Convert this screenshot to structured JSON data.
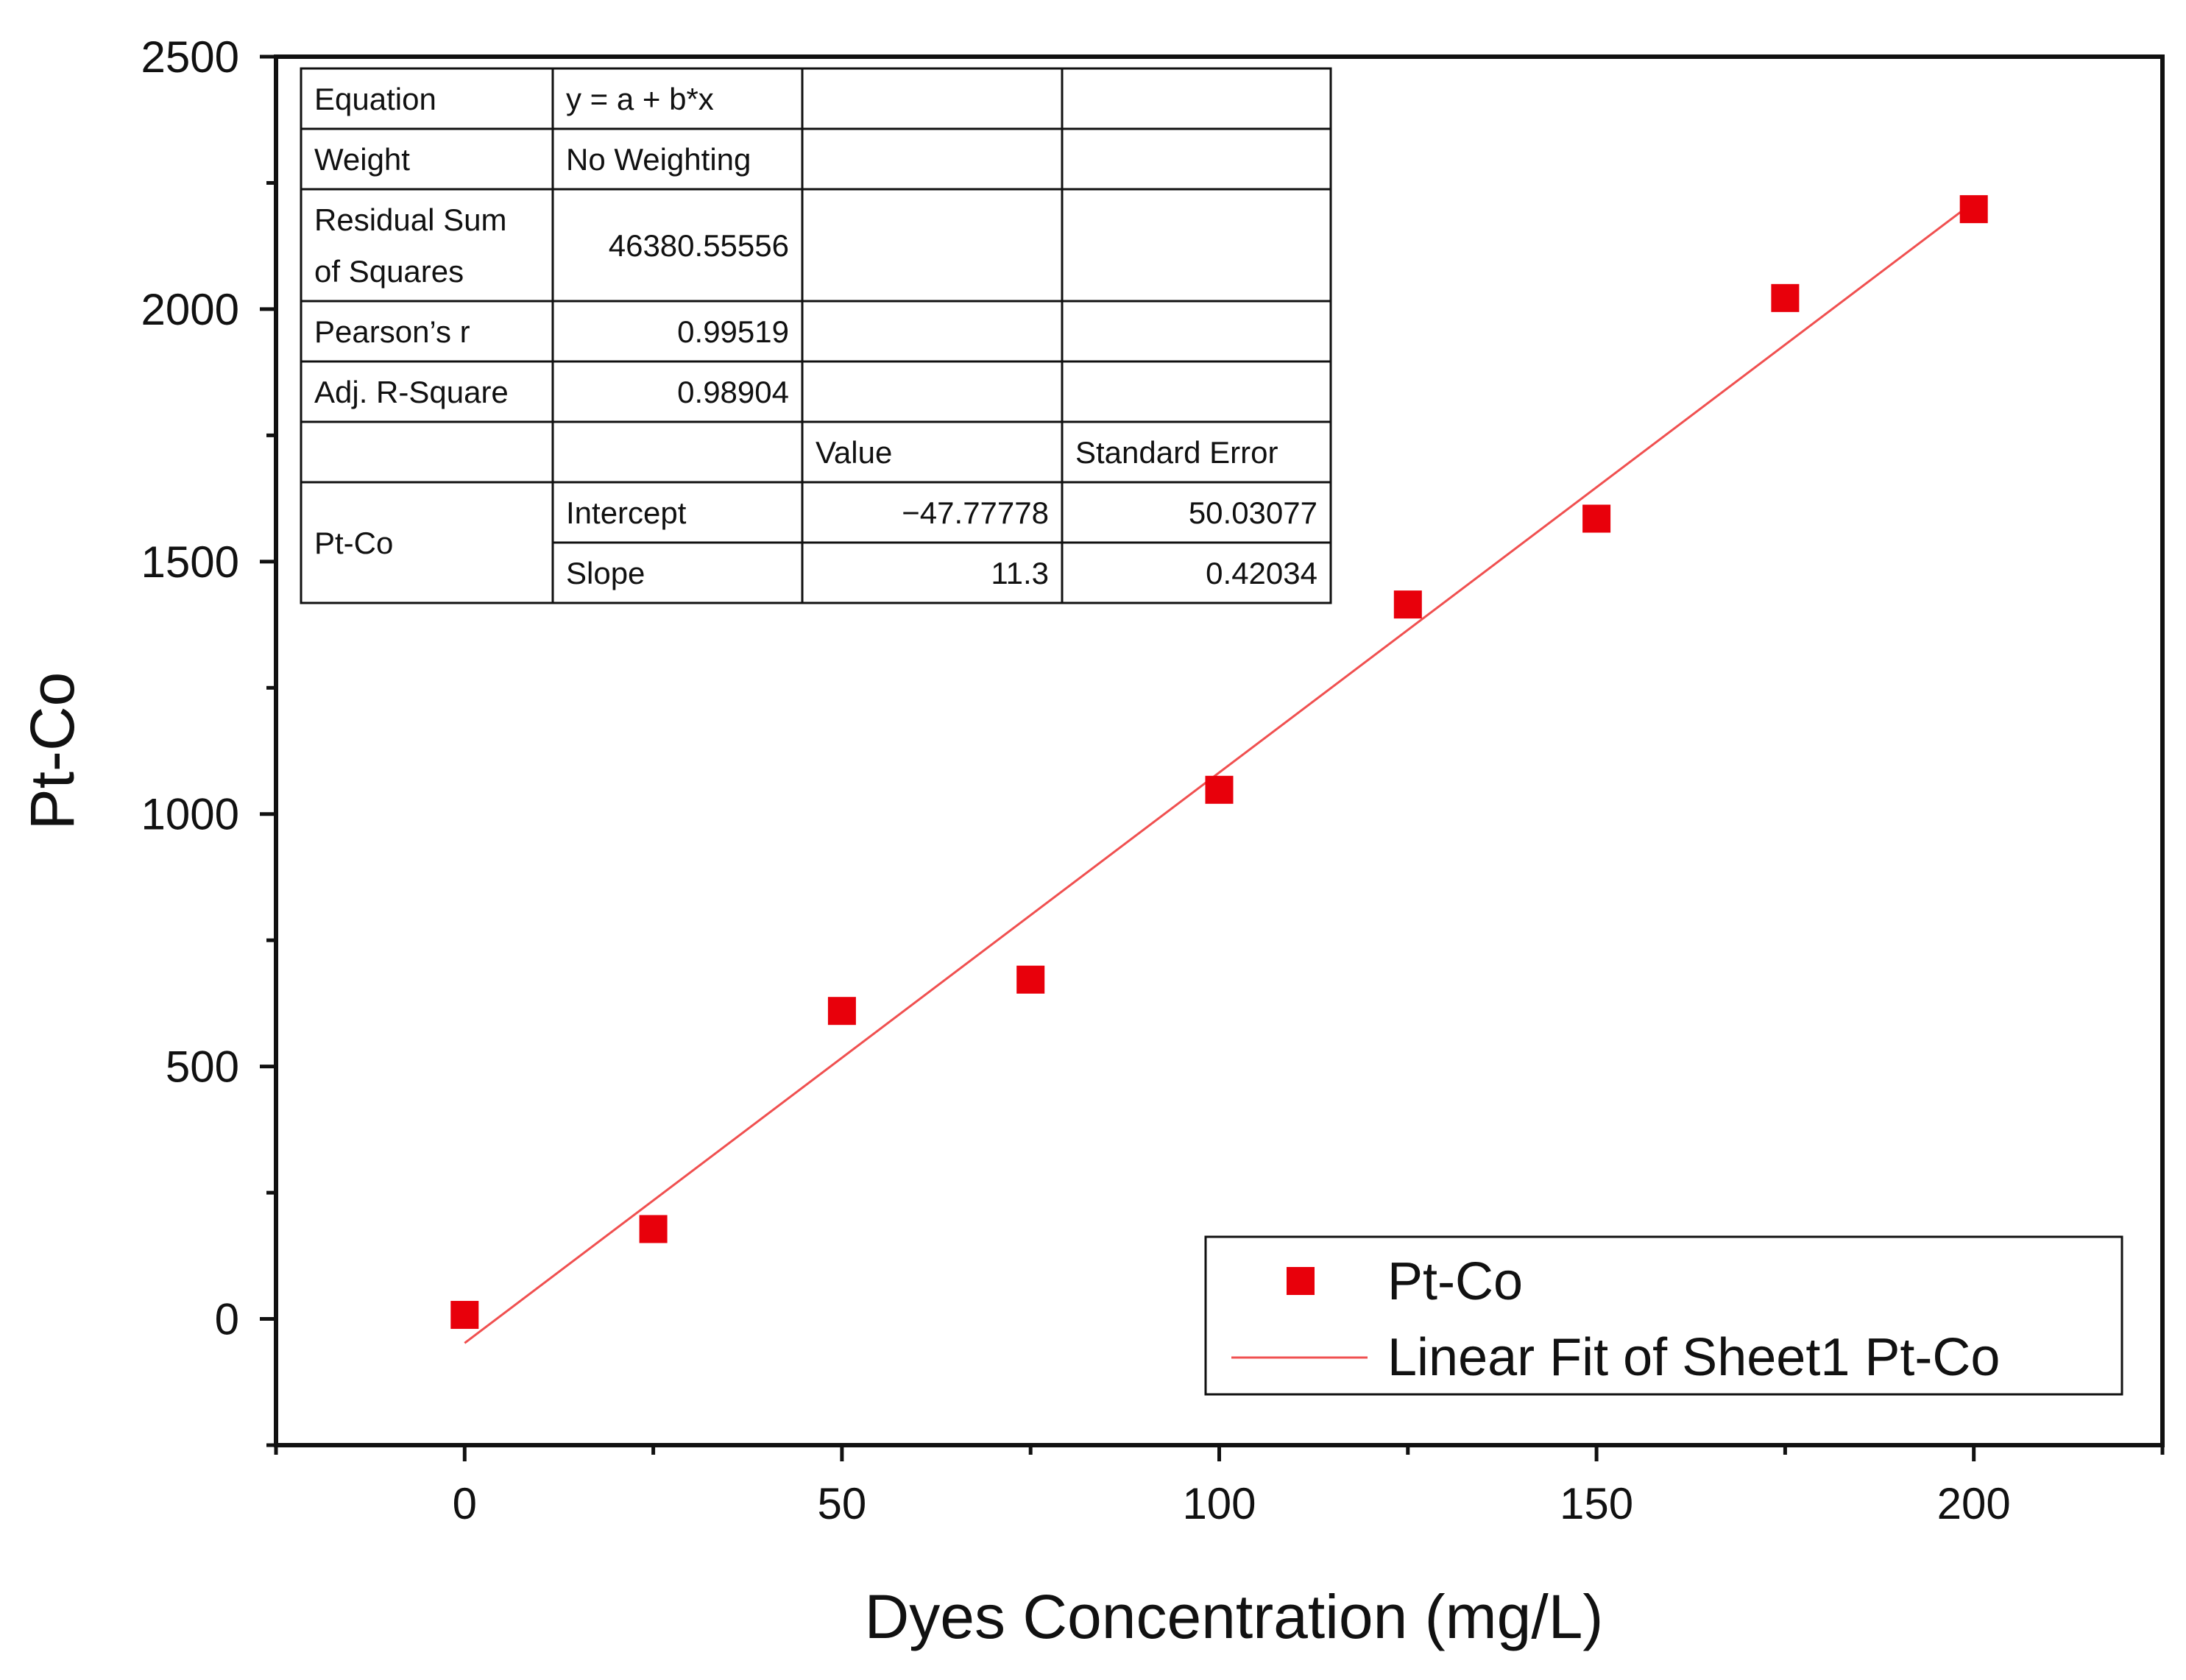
{
  "chart_data": {
    "type": "scatter",
    "title": "",
    "xlabel": "Dyes Concentration (mg/L)",
    "ylabel": "Pt-Co",
    "xlim": [
      -25,
      225
    ],
    "ylim": [
      -250,
      2500
    ],
    "x_ticks": [
      0,
      50,
      100,
      150,
      200
    ],
    "x_tick_labels": [
      "0",
      "50",
      "100",
      "150",
      "200"
    ],
    "x_minor_ticks": [
      -25,
      25,
      75,
      125,
      175,
      225
    ],
    "y_ticks": [
      0,
      500,
      1000,
      1500,
      2000,
      2500
    ],
    "y_tick_labels": [
      "0",
      "500",
      "1000",
      "1500",
      "2000",
      "2500"
    ],
    "y_minor_ticks": [
      -250,
      250,
      750,
      1250,
      1750,
      2250
    ],
    "grid": false,
    "series": [
      {
        "name": "Pt-Co",
        "kind": "scatter",
        "marker": "square",
        "color": "#e8000b",
        "x": [
          0,
          25,
          50,
          75,
          100,
          125,
          150,
          175,
          200
        ],
        "y": [
          8,
          178,
          610,
          672,
          1048,
          1415,
          1585,
          2022,
          2198
        ]
      },
      {
        "name": "Linear Fit of Sheet1 Pt-Co",
        "kind": "line",
        "color": "#f05050",
        "intercept": -47.77778,
        "slope": 11.3,
        "x_range": [
          0,
          200
        ]
      }
    ],
    "legend": {
      "position": "bottom-right",
      "entries": [
        "Pt-Co",
        "Linear Fit of Sheet1 Pt-Co"
      ]
    },
    "fit_table": {
      "rows": [
        [
          "Equation",
          "y = a + b*x",
          "",
          ""
        ],
        [
          "Weight",
          "No Weighting",
          "",
          ""
        ],
        [
          "Residual Sum|of Squares",
          "46380.55556",
          "",
          ""
        ],
        [
          "Pearson’s r",
          "0.99519",
          "",
          ""
        ],
        [
          "Adj. R-Square",
          "0.98904",
          "",
          ""
        ],
        [
          "",
          "",
          "Value",
          "Standard Error"
        ],
        [
          "Pt-Co",
          "Intercept",
          "−47.77778",
          "50.03077"
        ],
        [
          "",
          "Slope",
          "11.3",
          "0.42034"
        ]
      ]
    }
  }
}
